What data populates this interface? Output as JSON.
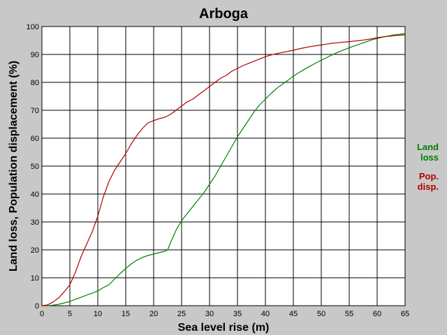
{
  "chart_data": {
    "type": "line",
    "title": "Arboga",
    "xlabel": "Sea level rise (m)",
    "ylabel": "Land loss, Population displacement (%)",
    "xlim": [
      0,
      65
    ],
    "ylim": [
      0,
      100
    ],
    "xticks": [
      0,
      5,
      10,
      15,
      20,
      25,
      30,
      35,
      40,
      45,
      50,
      55,
      60,
      65
    ],
    "yticks": [
      0,
      10,
      20,
      30,
      40,
      50,
      60,
      70,
      80,
      90,
      100
    ],
    "grid": true,
    "legend_position": "right",
    "series": [
      {
        "name": "Land loss",
        "legend_lines": [
          "Land",
          "loss"
        ],
        "color": "#008000",
        "x": [
          0,
          1,
          2,
          3,
          4,
          5,
          6,
          7,
          8,
          9,
          10,
          11,
          12,
          13,
          14,
          15,
          16,
          17,
          18,
          19,
          20,
          21,
          22,
          22.5,
          23,
          24,
          25,
          26,
          27,
          28,
          29,
          30,
          31,
          32,
          33,
          34,
          35,
          36,
          37,
          38,
          39,
          40,
          41,
          42,
          43,
          44,
          45,
          46,
          47,
          48,
          49,
          50,
          51,
          52,
          53,
          54,
          55,
          56,
          57,
          58,
          59,
          60,
          61,
          62,
          63,
          64,
          65
        ],
        "y": [
          0,
          0,
          0.2,
          0.5,
          1,
          1.5,
          2.3,
          3,
          3.8,
          4.5,
          5.3,
          6.5,
          7.5,
          9.5,
          11.5,
          13.3,
          15,
          16.3,
          17.3,
          18,
          18.5,
          19,
          19.5,
          20,
          22.5,
          27,
          30.5,
          33,
          35.5,
          38,
          40.5,
          43.5,
          46.5,
          50,
          53.5,
          57,
          60.5,
          63.5,
          66.5,
          69.5,
          72,
          74,
          76,
          77.8,
          79.3,
          80.7,
          82.2,
          83.5,
          84.7,
          85.8,
          86.9,
          87.9,
          88.9,
          89.9,
          90.8,
          91.6,
          92.4,
          93.1,
          93.8,
          94.5,
          95.2,
          95.7,
          96.2,
          96.6,
          97,
          97.2,
          97.5
        ]
      },
      {
        "name": "Pop. disp.",
        "legend_lines": [
          "Pop.",
          "disp."
        ],
        "color": "#b00000",
        "x": [
          0,
          1,
          2,
          3,
          4,
          5,
          6,
          7,
          8,
          9,
          10,
          11,
          12,
          13,
          14,
          15,
          16,
          17,
          18,
          19,
          20,
          21,
          22,
          23,
          24,
          25,
          26,
          27,
          28,
          29,
          30,
          31,
          32,
          33,
          34,
          35,
          36,
          37,
          38,
          39,
          40,
          41,
          42,
          43,
          44,
          45,
          46,
          47,
          48,
          49,
          50,
          51,
          52,
          53,
          54,
          55,
          56,
          57,
          58,
          59,
          60,
          61,
          62,
          63,
          64,
          65
        ],
        "y": [
          0,
          0.3,
          1.3,
          2.8,
          5,
          7.5,
          12,
          17.5,
          22,
          26.5,
          32,
          39,
          44.5,
          48.5,
          51.5,
          54.5,
          58,
          61,
          63.5,
          65.5,
          66.3,
          67,
          67.5,
          68.5,
          70,
          71.5,
          73,
          74,
          75.5,
          77,
          78.5,
          80,
          81.5,
          82.5,
          84,
          85,
          86,
          86.8,
          87.6,
          88.4,
          89.2,
          89.8,
          90.3,
          90.7,
          91.1,
          91.5,
          92,
          92.4,
          92.8,
          93.1,
          93.4,
          93.7,
          94,
          94.2,
          94.4,
          94.6,
          94.8,
          95,
          95.3,
          95.6,
          96,
          96.3,
          96.5,
          96.7,
          96.9,
          97
        ]
      }
    ]
  }
}
